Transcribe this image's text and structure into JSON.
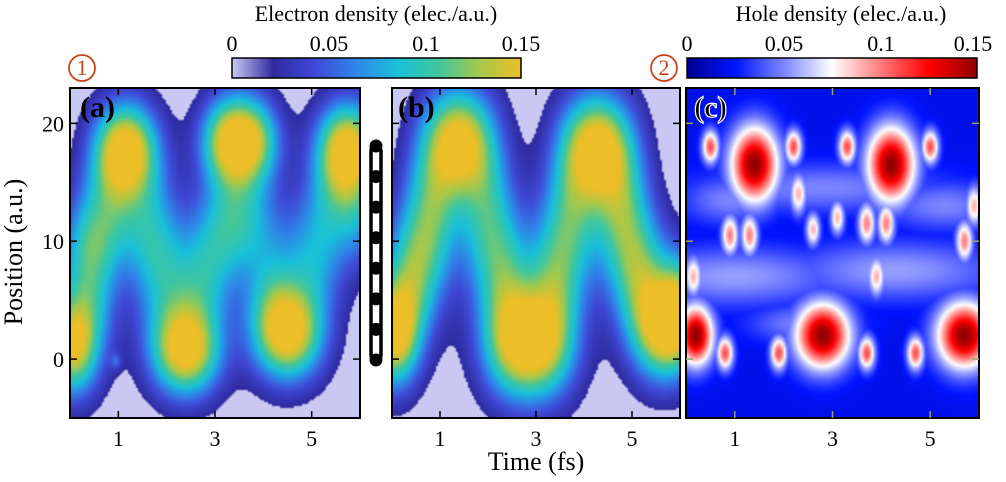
{
  "colors": {
    "electron_colormap": [
      "#c9c8f2",
      "#2f2ba0",
      "#3f49d6",
      "#2f85e8",
      "#19c0da",
      "#3fc69e",
      "#a6c84a",
      "#ecbe27"
    ],
    "hole_colormap": [
      "#00008f",
      "#0014ff",
      "#7c86ff",
      "#ffffff",
      "#ff7c7c",
      "#ff0000",
      "#8f0000"
    ],
    "electron_background": "#c9c8f2",
    "badge_color": "#c8441c"
  },
  "chart_data": {
    "type": "heatmap",
    "xlabel": "Time (fs)",
    "ylabel": "Position (a.u.)",
    "xlim": [
      0,
      6
    ],
    "ylim": [
      -5,
      23
    ],
    "x_ticks": [
      1,
      3,
      5
    ],
    "y_ticks": [
      0,
      10,
      20
    ],
    "panels": [
      {
        "id": "a",
        "label": "(a)",
        "quantity": "electron",
        "background_threshold": 0.012,
        "hotspots": [
          {
            "t": 0.05,
            "x": 1.0,
            "rt": 0.35,
            "rx": 2.8,
            "value": 0.13
          },
          {
            "t": 0.4,
            "x": 6.5,
            "rt": 0.4,
            "rx": 4.5,
            "value": 0.09
          },
          {
            "t": 0.6,
            "x": 10.5,
            "rt": 0.45,
            "rx": 2.5,
            "value": 0.04
          },
          {
            "t": 0.85,
            "x": 14.5,
            "rt": 0.4,
            "rx": 3.0,
            "value": 0.05
          },
          {
            "t": 1.15,
            "x": 18.0,
            "rt": 0.45,
            "rx": 2.7,
            "value": 0.15
          },
          {
            "t": 1.55,
            "x": 13.5,
            "rt": 0.45,
            "rx": 3.5,
            "value": 0.05
          },
          {
            "t": 1.8,
            "x": 9.0,
            "rt": 0.45,
            "rx": 3.0,
            "value": 0.06
          },
          {
            "t": 2.05,
            "x": 4.5,
            "rt": 0.45,
            "rx": 3.0,
            "value": 0.05
          },
          {
            "t": 2.4,
            "x": 0.5,
            "rt": 0.5,
            "rx": 2.6,
            "value": 0.15
          },
          {
            "t": 2.75,
            "x": 5.5,
            "rt": 0.4,
            "rx": 3.0,
            "value": 0.05
          },
          {
            "t": 3.0,
            "x": 9.5,
            "rt": 0.45,
            "rx": 3.0,
            "value": 0.05
          },
          {
            "t": 3.35,
            "x": 12.5,
            "rt": 0.45,
            "rx": 3.0,
            "value": 0.05
          },
          {
            "t": 3.1,
            "x": 18.5,
            "rt": 0.35,
            "rx": 2.3,
            "value": 0.04
          },
          {
            "t": 3.5,
            "x": 18.5,
            "rt": 0.45,
            "rx": 2.8,
            "value": 0.15
          },
          {
            "t": 3.95,
            "x": 18.5,
            "rt": 0.35,
            "rx": 2.3,
            "value": 0.04
          },
          {
            "t": 3.9,
            "x": 11.0,
            "rt": 0.45,
            "rx": 3.0,
            "value": 0.04
          },
          {
            "t": 4.15,
            "x": 5.5,
            "rt": 0.4,
            "rx": 3.0,
            "value": 0.05
          },
          {
            "t": 4.5,
            "x": 2.0,
            "rt": 0.5,
            "rx": 2.7,
            "value": 0.15
          },
          {
            "t": 4.9,
            "x": 6.5,
            "rt": 0.45,
            "rx": 3.5,
            "value": 0.04
          },
          {
            "t": 5.2,
            "x": 10.5,
            "rt": 0.45,
            "rx": 3.5,
            "value": 0.05
          },
          {
            "t": 5.6,
            "x": 14.5,
            "rt": 0.4,
            "rx": 3.0,
            "value": 0.05
          },
          {
            "t": 5.75,
            "x": 18.0,
            "rt": 0.45,
            "rx": 2.7,
            "value": 0.15
          },
          {
            "t": 6.0,
            "x": 12.0,
            "rt": 0.3,
            "rx": 3.0,
            "value": 0.04
          },
          {
            "t": 0.95,
            "x": -0.2,
            "rt": 0.08,
            "rx": 0.5,
            "value": 0.03
          }
        ]
      },
      {
        "id": "b",
        "label": "(b)",
        "quantity": "electron",
        "background_threshold": 0.012,
        "hotspots": [
          {
            "t": 0.05,
            "x": 2.0,
            "rt": 0.35,
            "rx": 3.0,
            "value": 0.15
          },
          {
            "t": 0.4,
            "x": 7.0,
            "rt": 0.4,
            "rx": 4.0,
            "value": 0.09
          },
          {
            "t": 0.85,
            "x": 12.5,
            "rt": 0.4,
            "rx": 4.5,
            "value": 0.09
          },
          {
            "t": 1.4,
            "x": 18.5,
            "rt": 0.5,
            "rx": 3.2,
            "value": 0.15
          },
          {
            "t": 1.95,
            "x": 12.0,
            "rt": 0.4,
            "rx": 4.5,
            "value": 0.08
          },
          {
            "t": 2.4,
            "x": 6.0,
            "rt": 0.4,
            "rx": 4.5,
            "value": 0.08
          },
          {
            "t": 2.85,
            "x": 1.0,
            "rt": 0.6,
            "rx": 3.2,
            "value": 0.15
          },
          {
            "t": 3.35,
            "x": 6.0,
            "rt": 0.4,
            "rx": 4.5,
            "value": 0.08
          },
          {
            "t": 3.75,
            "x": 12.0,
            "rt": 0.4,
            "rx": 4.5,
            "value": 0.08
          },
          {
            "t": 4.25,
            "x": 18.0,
            "rt": 0.5,
            "rx": 3.2,
            "value": 0.15
          },
          {
            "t": 4.75,
            "x": 12.5,
            "rt": 0.4,
            "rx": 4.5,
            "value": 0.09
          },
          {
            "t": 5.2,
            "x": 7.0,
            "rt": 0.4,
            "rx": 4.0,
            "value": 0.09
          },
          {
            "t": 5.7,
            "x": 2.5,
            "rt": 0.45,
            "rx": 3.0,
            "value": 0.15
          },
          {
            "t": 6.0,
            "x": 5.0,
            "rt": 0.3,
            "rx": 3.0,
            "value": 0.08
          }
        ]
      },
      {
        "id": "c",
        "label": "(c)",
        "quantity": "hole",
        "background_value": 0.02,
        "hotspots": [
          {
            "t": 1.4,
            "x": 16.5,
            "rt": 0.35,
            "rx": 2.3,
            "value": 0.15
          },
          {
            "t": 4.2,
            "x": 16.5,
            "rt": 0.35,
            "rx": 2.3,
            "value": 0.15
          },
          {
            "t": 2.8,
            "x": 2.0,
            "rt": 0.4,
            "rx": 2.0,
            "value": 0.15
          },
          {
            "t": 5.7,
            "x": 2.0,
            "rt": 0.4,
            "rx": 2.0,
            "value": 0.15
          },
          {
            "t": 0.2,
            "x": 2.0,
            "rt": 0.25,
            "rx": 1.8,
            "value": 0.15
          },
          {
            "t": 0.5,
            "x": 18.0,
            "rt": 0.12,
            "rx": 1.0,
            "value": 0.11
          },
          {
            "t": 2.2,
            "x": 18.0,
            "rt": 0.12,
            "rx": 1.0,
            "value": 0.11
          },
          {
            "t": 3.3,
            "x": 18.0,
            "rt": 0.12,
            "rx": 1.0,
            "value": 0.11
          },
          {
            "t": 5.0,
            "x": 18.0,
            "rt": 0.12,
            "rx": 1.0,
            "value": 0.11
          },
          {
            "t": 0.8,
            "x": 0.5,
            "rt": 0.12,
            "rx": 1.0,
            "value": 0.11
          },
          {
            "t": 1.9,
            "x": 0.5,
            "rt": 0.12,
            "rx": 1.0,
            "value": 0.11
          },
          {
            "t": 3.7,
            "x": 0.5,
            "rt": 0.12,
            "rx": 1.0,
            "value": 0.11
          },
          {
            "t": 4.7,
            "x": 0.5,
            "rt": 0.12,
            "rx": 1.0,
            "value": 0.11
          },
          {
            "t": 0.9,
            "x": 10.5,
            "rt": 0.12,
            "rx": 1.2,
            "value": 0.1
          },
          {
            "t": 1.3,
            "x": 10.5,
            "rt": 0.12,
            "rx": 1.2,
            "value": 0.1
          },
          {
            "t": 3.7,
            "x": 11.5,
            "rt": 0.12,
            "rx": 1.2,
            "value": 0.1
          },
          {
            "t": 4.1,
            "x": 11.5,
            "rt": 0.12,
            "rx": 1.2,
            "value": 0.1
          },
          {
            "t": 5.7,
            "x": 10.0,
            "rt": 0.12,
            "rx": 1.2,
            "value": 0.1
          },
          {
            "t": 2.3,
            "x": 14.0,
            "rt": 0.12,
            "rx": 1.2,
            "value": 0.09
          },
          {
            "t": 5.9,
            "x": 13.0,
            "rt": 0.12,
            "rx": 1.2,
            "value": 0.09
          },
          {
            "t": 0.15,
            "x": 7.0,
            "rt": 0.12,
            "rx": 1.2,
            "value": 0.09
          },
          {
            "t": 3.9,
            "x": 7.0,
            "rt": 0.12,
            "rx": 1.2,
            "value": 0.09
          },
          {
            "t": 2.6,
            "x": 11.0,
            "rt": 0.1,
            "rx": 1.0,
            "value": 0.09
          },
          {
            "t": 3.1,
            "x": 12.0,
            "rt": 0.1,
            "rx": 1.0,
            "value": 0.09
          },
          {
            "t": 1.0,
            "x": 7.0,
            "rt": 1.6,
            "rx": 1.8,
            "value": 0.055
          },
          {
            "t": 4.3,
            "x": 7.5,
            "rt": 1.6,
            "rx": 1.8,
            "value": 0.055
          },
          {
            "t": 2.8,
            "x": 14.5,
            "rt": 1.8,
            "rx": 1.5,
            "value": 0.05
          },
          {
            "t": 0.9,
            "x": 13.5,
            "rt": 0.7,
            "rx": 1.5,
            "value": 0.05
          },
          {
            "t": 5.3,
            "x": 13.0,
            "rt": 0.9,
            "rx": 1.5,
            "value": 0.05
          },
          {
            "t": 2.4,
            "x": 3.0,
            "rt": 0.8,
            "rx": 1.2,
            "value": 0.05
          }
        ]
      }
    ],
    "colorbars": [
      {
        "id": "electron",
        "title": "Electron density (elec./a.u.)",
        "range": [
          0,
          0.15
        ],
        "ticks": [
          "0",
          "0.05",
          "0.1",
          "0.15"
        ],
        "tick_values": [
          0,
          0.05,
          0.1,
          0.15
        ]
      },
      {
        "id": "hole",
        "title": "Hole density (elec./a.u.)",
        "range": [
          0,
          0.15
        ],
        "ticks": [
          "0",
          "0.05",
          "0.1",
          "0.15"
        ],
        "tick_values": [
          0,
          0.05,
          0.1,
          0.15
        ]
      }
    ],
    "badges": [
      "1",
      "2"
    ],
    "chain_atoms": 8
  }
}
